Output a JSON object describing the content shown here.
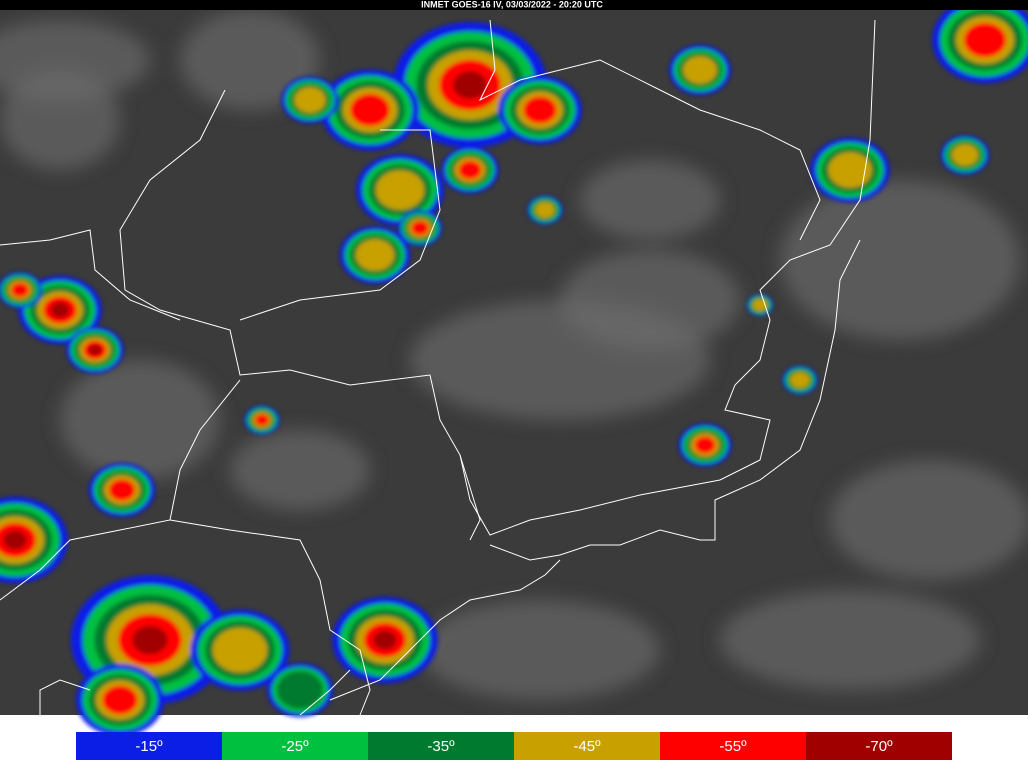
{
  "header": {
    "title": "INMET GOES-16 IV, 03/03/2022 - 20:20 UTC"
  },
  "legend": {
    "items": [
      {
        "label": "-15º",
        "color": "#0a1ee6"
      },
      {
        "label": "-25º",
        "color": "#00c040"
      },
      {
        "label": "-35º",
        "color": "#007a2e"
      },
      {
        "label": "-45º",
        "color": "#c8a000"
      },
      {
        "label": "-55º",
        "color": "#ff0000"
      },
      {
        "label": "-70º",
        "color": "#a00000"
      }
    ]
  }
}
